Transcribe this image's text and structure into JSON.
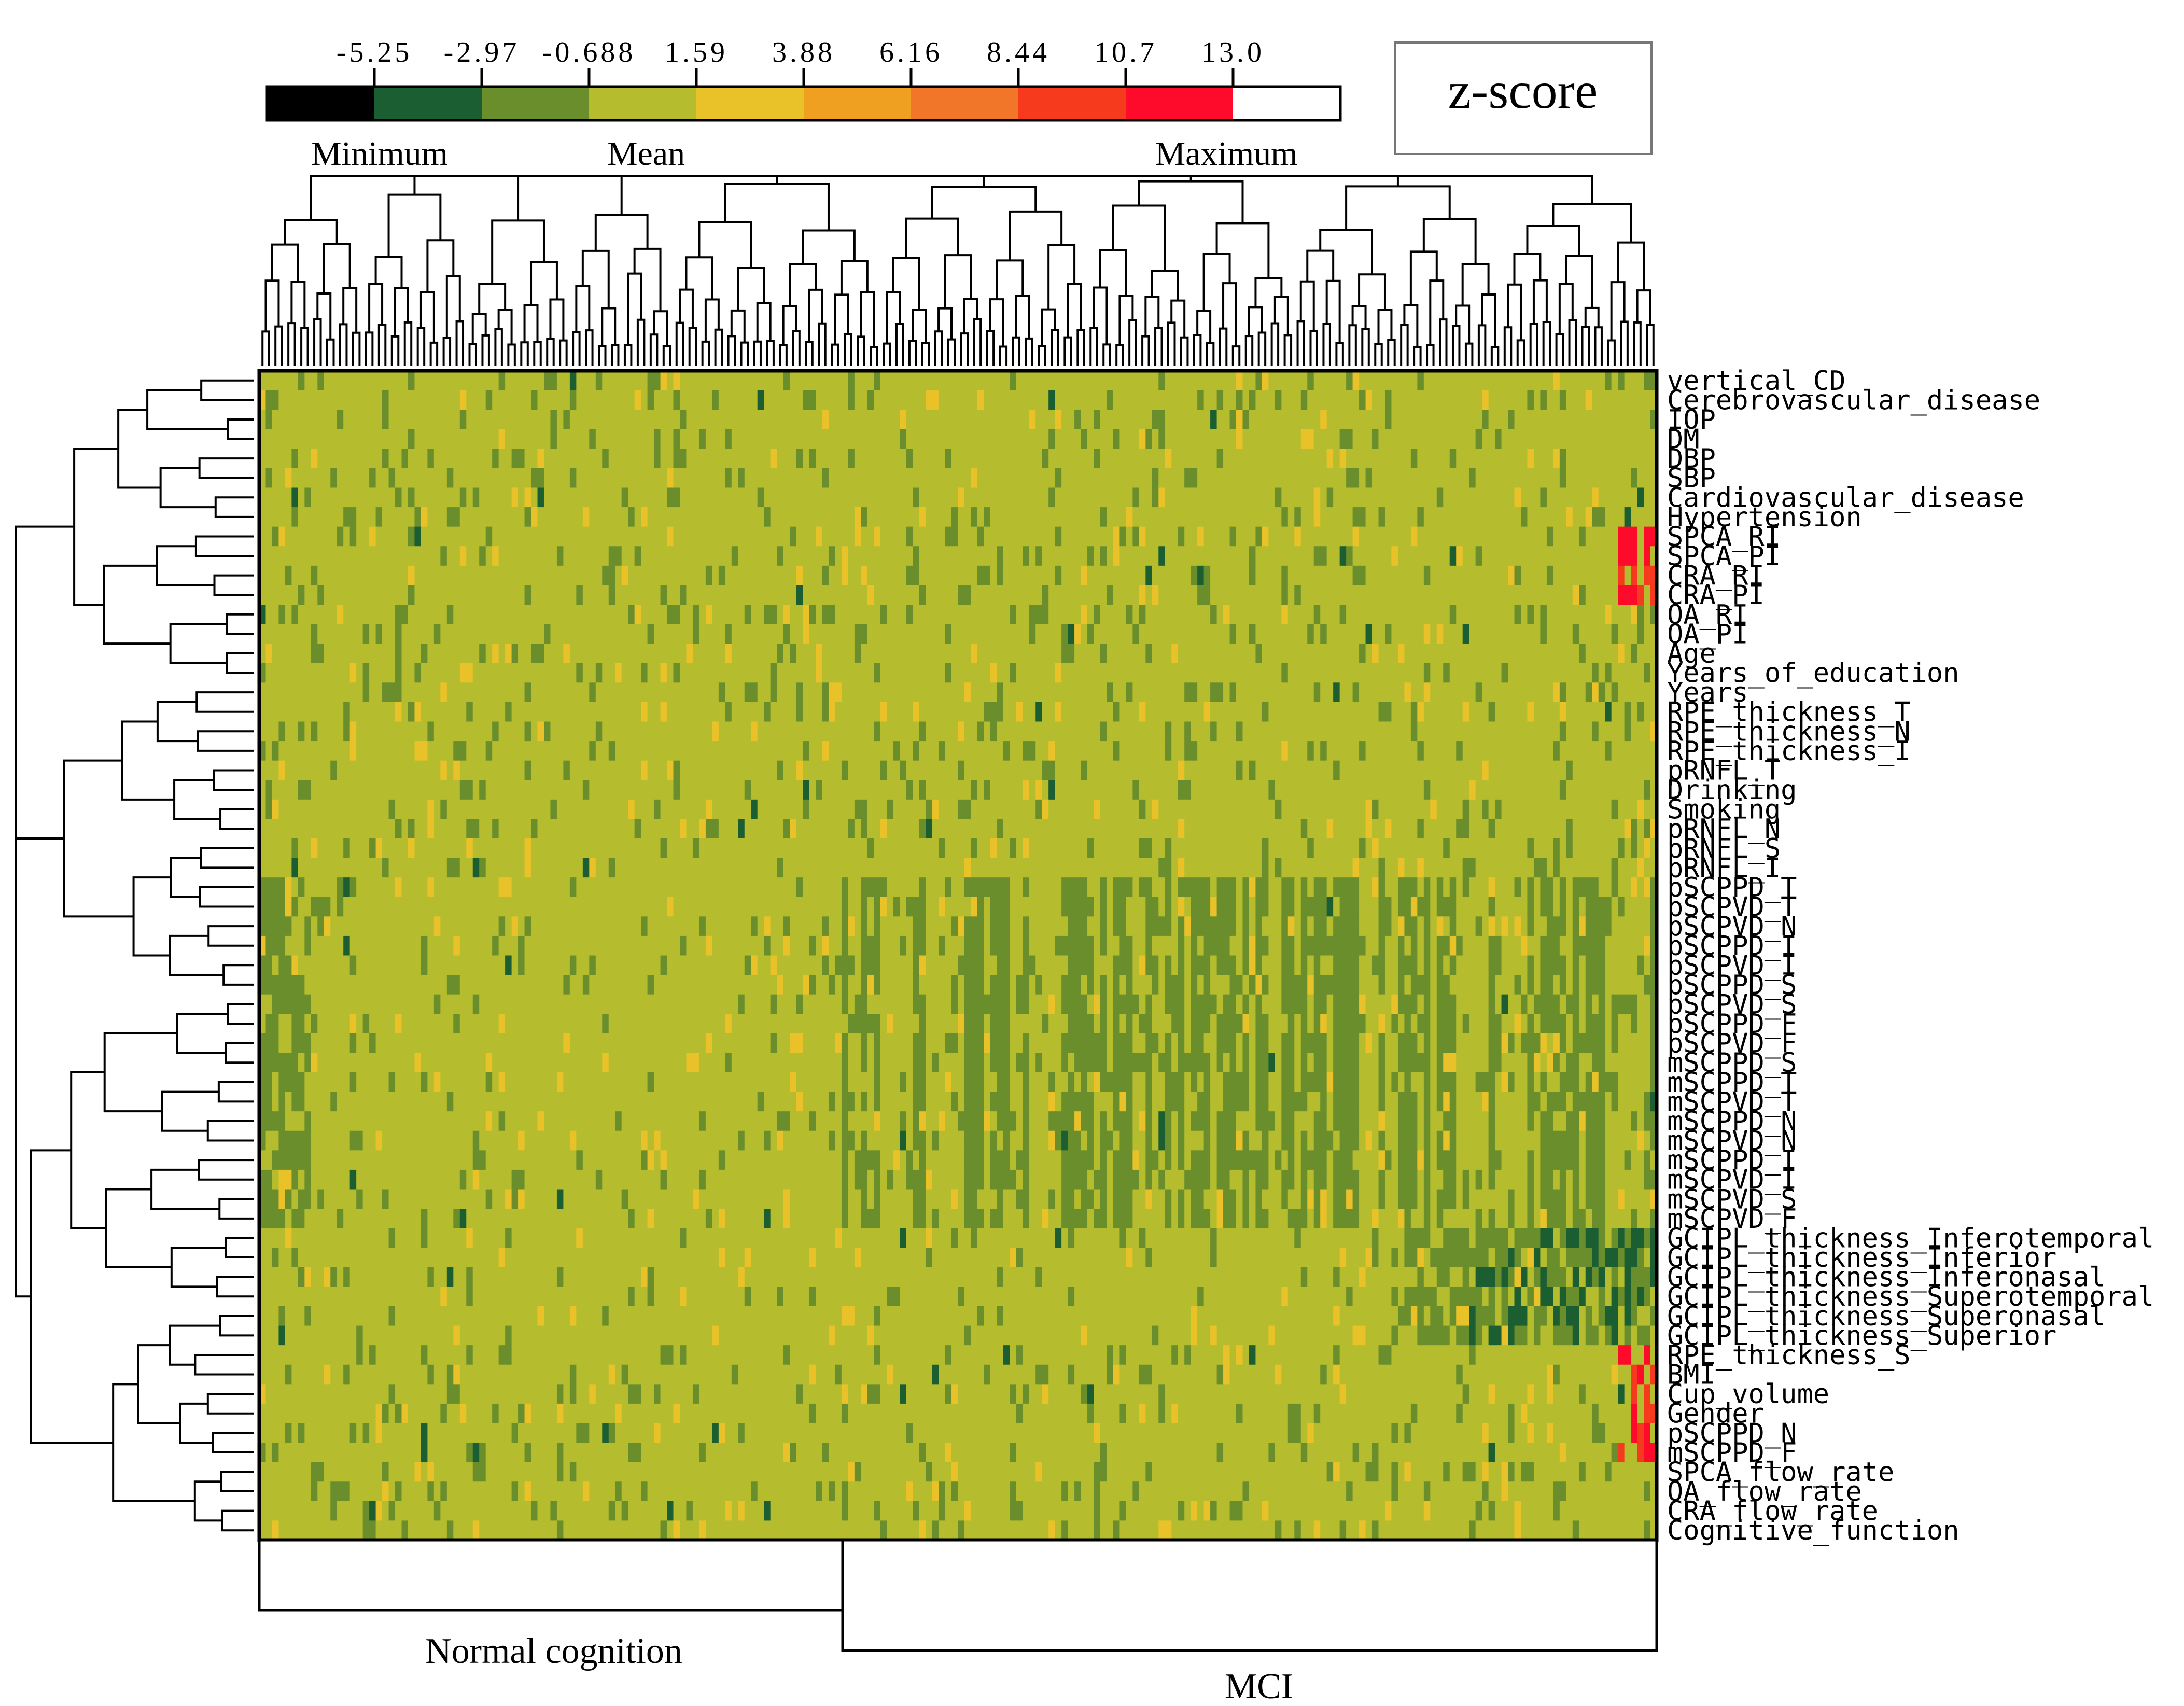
{
  "chart_data": {
    "type": "heatmap",
    "title": "",
    "legend": {
      "title": "z-score",
      "tick_labels": [
        "-5.25",
        "-2.97",
        "-0.688",
        "1.59",
        "3.88",
        "6.16",
        "8.44",
        "10.7",
        "13.0"
      ],
      "bin_colors": [
        "#000000",
        "#1b5e32",
        "#6b8e2c",
        "#b5bd2e",
        "#e9c22a",
        "#efa021",
        "#f2762a",
        "#f53a1e",
        "#fe0a2a",
        "#ffffff"
      ],
      "anchor_labels": {
        "minimum": "Minimum",
        "mean": "Mean",
        "maximum": "Maximum"
      }
    },
    "row_labels": [
      "vertical_CD",
      "Cerebrovascular_disease",
      "IOP",
      "DM",
      "DBP",
      "SBP",
      "Cardiovascular_disease",
      "Hypertension",
      "SPCA_RI",
      "SPCA_PI",
      "CRA_RI",
      "CRA_PI",
      "OA_RI",
      "OA_PI",
      "Age",
      "Years_of_education",
      "Years",
      "RPE_thickness_T",
      "RPE_thickness_N",
      "RPE_thickness_I",
      "pRNFL_T",
      "Drinking",
      "Smoking",
      "pRNFL_N",
      "pRNFL_S",
      "pRNFL_I",
      "pSCPPD_T",
      "pSCPVD_T",
      "pSCPVD_N",
      "pSCPPD_I",
      "pSCPVD_I",
      "pSCPPD_S",
      "pSCPVD_S",
      "pSCPPD_F",
      "pSCPVD_F",
      "mSCPPD_S",
      "mSCPPD_T",
      "mSCPVD_T",
      "mSCPPD_N",
      "mSCPVD_N",
      "mSCPPD_I",
      "mSCPVD_I",
      "mSCPVD_S",
      "mSCPVD_F",
      "GCIPL_thickness_Inferotemporal",
      "GCIPL_thickness_Inferior",
      "GCIPL_thickness_Inferonasal",
      "GCIPL_thickness_Superotemporal",
      "GCIPL_thickness_Superonasal",
      "GCIPL_thickness_Superior",
      "RPE_thickness_S",
      "BMI",
      "Cup_volume",
      "Gender",
      "pSCPPD_N",
      "mSCPPD_F",
      "SPCA_flow_rate",
      "OA_flow_rate",
      "CRA_flow_rate",
      "Cognitive_function"
    ],
    "column_groups": [
      {
        "label": "Normal cognition",
        "count": 90
      },
      {
        "label": "MCI",
        "count": 126
      }
    ],
    "n_columns": 216,
    "value_range": [
      -5.25,
      13.0
    ],
    "approx_mean_value": 0.4,
    "notes_pattern": {
      "mci_block_low_rows": [
        "pSCPPD_T",
        "pSCPVD_T",
        "pSCPVD_N",
        "pSCPPD_I",
        "pSCPVD_I",
        "pSCPPD_S",
        "pSCPVD_S",
        "pSCPPD_F",
        "pSCPVD_F",
        "mSCPPD_S",
        "mSCPPD_T",
        "mSCPVD_T",
        "mSCPPD_N",
        "mSCPVD_N",
        "mSCPPD_I",
        "mSCPVD_I",
        "mSCPVD_S",
        "mSCPVD_F"
      ],
      "gcipl_low_rows": [
        "GCIPL_thickness_Inferotemporal",
        "GCIPL_thickness_Inferior",
        "GCIPL_thickness_Inferonasal",
        "GCIPL_thickness_Superotemporal",
        "GCIPL_thickness_Superonasal",
        "GCIPL_thickness_Superior"
      ],
      "high_outlier_rows": [
        "SPCA_RI",
        "SPCA_PI",
        "CRA_RI",
        "CRA_PI",
        "RPE_thickness_S",
        "BMI",
        "Cup_volume",
        "Gender",
        "pSCPPD_N",
        "mSCPPD_F"
      ]
    }
  }
}
